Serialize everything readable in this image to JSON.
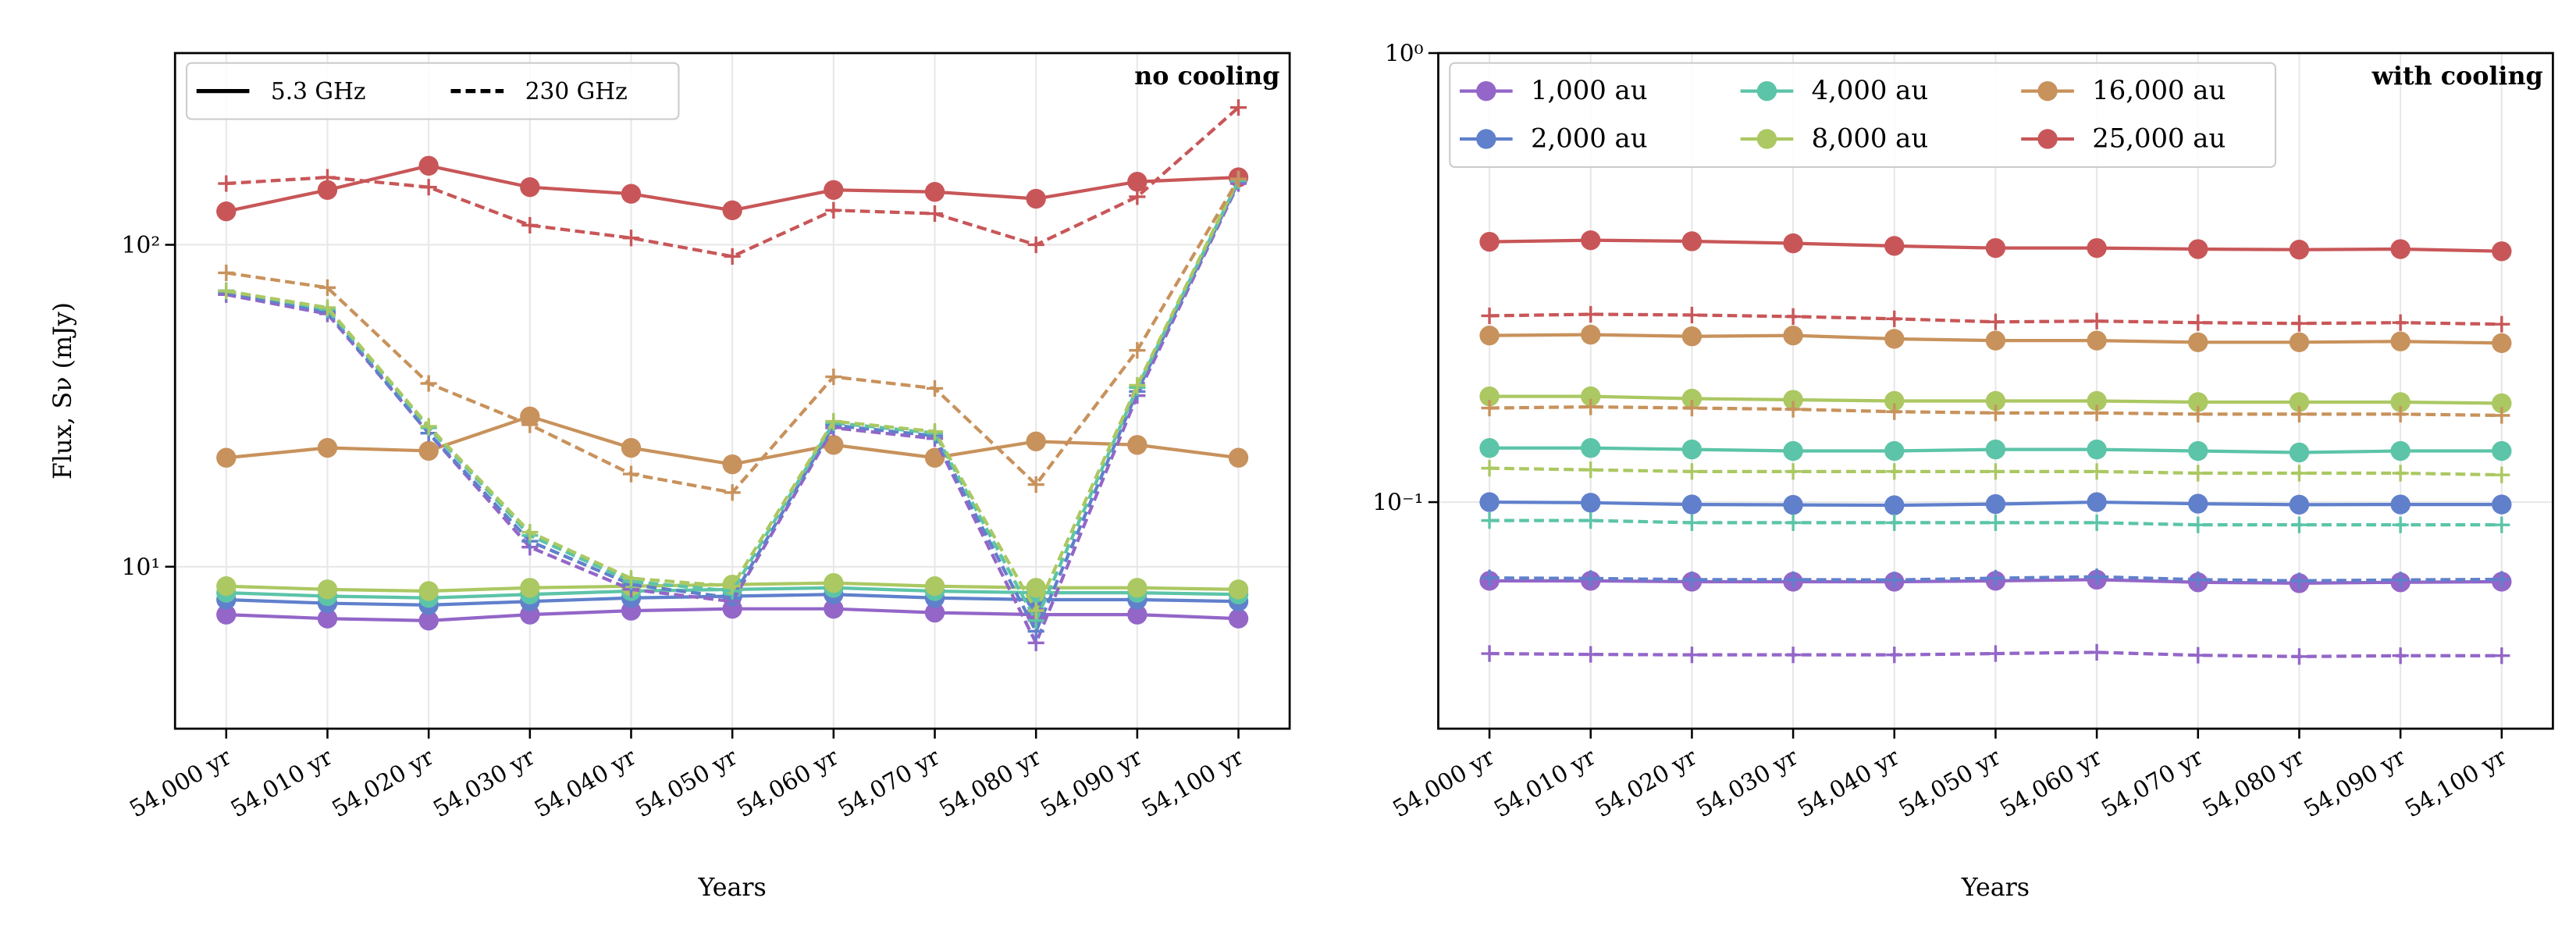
{
  "chart_data": [
    {
      "type": "line",
      "title": "no cooling",
      "xlabel": "Years",
      "ylabel": "Flux, Sν (mJy)",
      "categories": [
        "54,000 yr",
        "54,010 yr",
        "54,020 yr",
        "54,030 yr",
        "54,040 yr",
        "54,050 yr",
        "54,060 yr",
        "54,070 yr",
        "54,080 yr",
        "54,090 yr",
        "54,100 yr"
      ],
      "log_y": true,
      "grid": true,
      "ylim": [
        3.14,
        394
      ],
      "yticks": [
        {
          "value": 10,
          "label": "10¹"
        },
        {
          "value": 100,
          "label": "10²"
        }
      ],
      "legend_loc": "upper left",
      "legend_columns": 2,
      "legend": [
        {
          "name": "5.3 GHz",
          "linestyle": "solid"
        },
        {
          "name": "230 GHz",
          "linestyle": "dashed"
        }
      ],
      "series": [
        {
          "color": "#9366c8",
          "linestyle": "solid",
          "marker": "o",
          "values": [
            7.1,
            6.9,
            6.8,
            7.1,
            7.3,
            7.4,
            7.4,
            7.2,
            7.1,
            7.1,
            6.9
          ]
        },
        {
          "color": "#6080cc",
          "linestyle": "solid",
          "marker": "o",
          "values": [
            7.9,
            7.7,
            7.6,
            7.8,
            8.0,
            8.1,
            8.2,
            8.0,
            7.9,
            7.9,
            7.8
          ]
        },
        {
          "color": "#5cc4a8",
          "linestyle": "solid",
          "marker": "o",
          "values": [
            8.3,
            8.1,
            8.0,
            8.2,
            8.4,
            8.5,
            8.6,
            8.4,
            8.3,
            8.3,
            8.2
          ]
        },
        {
          "color": "#abc862",
          "linestyle": "solid",
          "marker": "o",
          "values": [
            8.7,
            8.5,
            8.4,
            8.6,
            8.7,
            8.8,
            8.9,
            8.7,
            8.6,
            8.6,
            8.5
          ]
        },
        {
          "color": "#c8925c",
          "linestyle": "solid",
          "marker": "o",
          "values": [
            21.8,
            23.4,
            22.9,
            29.3,
            23.4,
            20.8,
            23.9,
            21.8,
            24.5,
            23.9,
            21.8
          ]
        },
        {
          "color": "#c85658",
          "linestyle": "solid",
          "marker": "o",
          "values": [
            127,
            148,
            176,
            151,
            144,
            128,
            148,
            146,
            139,
            157,
            162
          ]
        },
        {
          "color": "#9366c8",
          "linestyle": "dashed",
          "marker": "+",
          "values": [
            70,
            61,
            26,
            11.5,
            8.5,
            7.8,
            27,
            25,
            5.8,
            34,
            155
          ]
        },
        {
          "color": "#6080cc",
          "linestyle": "dashed",
          "marker": "+",
          "values": [
            71,
            62,
            26,
            12,
            8.8,
            8.0,
            27.5,
            25.5,
            6.3,
            35,
            157
          ]
        },
        {
          "color": "#5cc4a8",
          "linestyle": "dashed",
          "marker": "+",
          "values": [
            72,
            63,
            27,
            12.5,
            9.0,
            8.4,
            28,
            26,
            6.8,
            36,
            158
          ]
        },
        {
          "color": "#abc862",
          "linestyle": "dashed",
          "marker": "+",
          "values": [
            71.8,
            63.8,
            27.3,
            12.8,
            9.2,
            8.7,
            28.3,
            26.3,
            7.3,
            36.6,
            160
          ]
        },
        {
          "color": "#c8925c",
          "linestyle": "dashed",
          "marker": "+",
          "values": [
            81.8,
            73.6,
            37.1,
            27.6,
            19.4,
            17.0,
            38.9,
            35.8,
            18.0,
            47.0,
            160
          ]
        },
        {
          "color": "#c85658",
          "linestyle": "dashed",
          "marker": "+",
          "values": [
            155,
            162,
            151,
            115,
            105,
            92,
            128,
            125,
            100,
            141,
            267
          ]
        }
      ]
    },
    {
      "type": "line",
      "title": "with cooling",
      "xlabel": "Years",
      "categories": [
        "54,000 yr",
        "54,010 yr",
        "54,020 yr",
        "54,030 yr",
        "54,040 yr",
        "54,050 yr",
        "54,060 yr",
        "54,070 yr",
        "54,080 yr",
        "54,090 yr",
        "54,100 yr"
      ],
      "log_y": true,
      "grid": true,
      "ylim": [
        0.0313,
        1
      ],
      "yticks": [
        {
          "value": 0.1,
          "label": "10⁻¹"
        },
        {
          "value": 1,
          "label": "10⁰"
        }
      ],
      "legend_loc": "upper left",
      "legend_columns": 3,
      "series": [
        {
          "name": "1,000 au",
          "color": "#9366c8",
          "linestyle": "solid",
          "marker": "o",
          "values": [
            0.0668,
            0.0668,
            0.0665,
            0.0665,
            0.0665,
            0.0668,
            0.0672,
            0.0663,
            0.066,
            0.0663,
            0.0665
          ]
        },
        {
          "name": "2,000 au",
          "color": "#6080cc",
          "linestyle": "solid",
          "marker": "o",
          "values": [
            0.1,
            0.0997,
            0.0988,
            0.0986,
            0.0984,
            0.099,
            0.1,
            0.0992,
            0.0987,
            0.0988,
            0.0988
          ]
        },
        {
          "name": "4,000 au",
          "color": "#5cc4a8",
          "linestyle": "solid",
          "marker": "o",
          "values": [
            0.132,
            0.132,
            0.131,
            0.13,
            0.13,
            0.131,
            0.131,
            0.13,
            0.129,
            0.13,
            0.13
          ]
        },
        {
          "name": "8,000 au",
          "color": "#abc862",
          "linestyle": "solid",
          "marker": "o",
          "values": [
            0.172,
            0.172,
            0.17,
            0.169,
            0.168,
            0.168,
            0.168,
            0.167,
            0.167,
            0.167,
            0.166
          ]
        },
        {
          "name": "16,000 au",
          "color": "#c8925c",
          "linestyle": "solid",
          "marker": "o",
          "values": [
            0.235,
            0.236,
            0.234,
            0.235,
            0.231,
            0.229,
            0.229,
            0.227,
            0.227,
            0.228,
            0.226
          ]
        },
        {
          "name": "25,000 au",
          "color": "#c85658",
          "linestyle": "solid",
          "marker": "o",
          "values": [
            0.38,
            0.383,
            0.381,
            0.377,
            0.372,
            0.368,
            0.368,
            0.366,
            0.365,
            0.366,
            0.362
          ]
        },
        {
          "color": "#9366c8",
          "linestyle": "dashed",
          "marker": "+",
          "values": [
            0.046,
            0.0458,
            0.0457,
            0.0457,
            0.0457,
            0.046,
            0.0463,
            0.0456,
            0.0453,
            0.0455,
            0.0455
          ]
        },
        {
          "color": "#6080cc",
          "linestyle": "dashed",
          "marker": "+",
          "values": [
            0.0678,
            0.0676,
            0.0672,
            0.0672,
            0.0671,
            0.0677,
            0.0682,
            0.0672,
            0.0668,
            0.0671,
            0.0673
          ]
        },
        {
          "color": "#5cc4a8",
          "linestyle": "dashed",
          "marker": "+",
          "values": [
            0.091,
            0.091,
            0.09,
            0.09,
            0.09,
            0.09,
            0.09,
            0.089,
            0.089,
            0.089,
            0.089
          ]
        },
        {
          "color": "#abc862",
          "linestyle": "dashed",
          "marker": "+",
          "values": [
            0.119,
            0.118,
            0.117,
            0.117,
            0.117,
            0.117,
            0.117,
            0.116,
            0.116,
            0.116,
            0.115
          ]
        },
        {
          "color": "#c8925c",
          "linestyle": "dashed",
          "marker": "+",
          "values": [
            0.162,
            0.163,
            0.162,
            0.161,
            0.159,
            0.158,
            0.158,
            0.157,
            0.157,
            0.157,
            0.156
          ]
        },
        {
          "color": "#c85658",
          "linestyle": "dashed",
          "marker": "+",
          "values": [
            0.26,
            0.262,
            0.261,
            0.259,
            0.256,
            0.252,
            0.253,
            0.251,
            0.25,
            0.251,
            0.249
          ]
        }
      ]
    }
  ]
}
